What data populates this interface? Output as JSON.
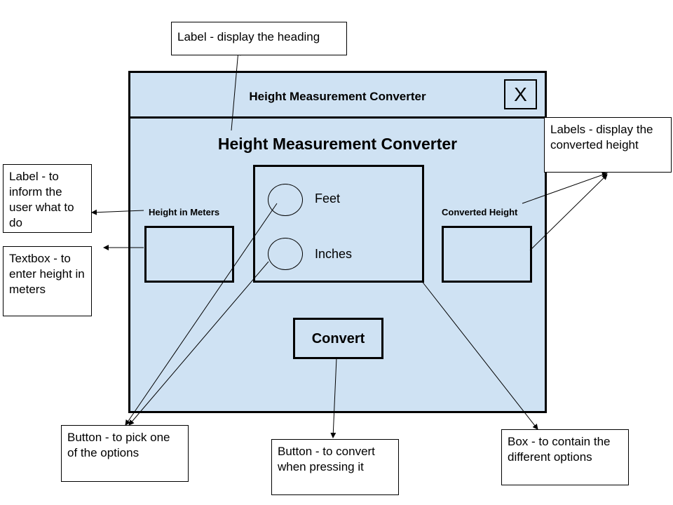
{
  "window": {
    "title": "Height Measurement Converter",
    "close_label": "X",
    "heading": "Height Measurement Converter",
    "input_label": "Height in Meters",
    "output_label": "Converted Height",
    "options": [
      {
        "label": "Feet"
      },
      {
        "label": "Inches"
      }
    ],
    "convert_label": "Convert"
  },
  "annotations": {
    "heading_note": "Label - display the heading",
    "input_label_note": "Label - to inform the user what to do",
    "textbox_note": "Textbox - to enter height in meters",
    "output_note": "Labels - display the converted height",
    "radio_note": "Button - to pick one of the options",
    "convert_note": "Button - to convert when pressing it",
    "box_note": "Box - to contain the different options"
  },
  "colors": {
    "window_fill": "#cfe2f3",
    "border": "#000000",
    "note_fill": "#ffffff"
  }
}
